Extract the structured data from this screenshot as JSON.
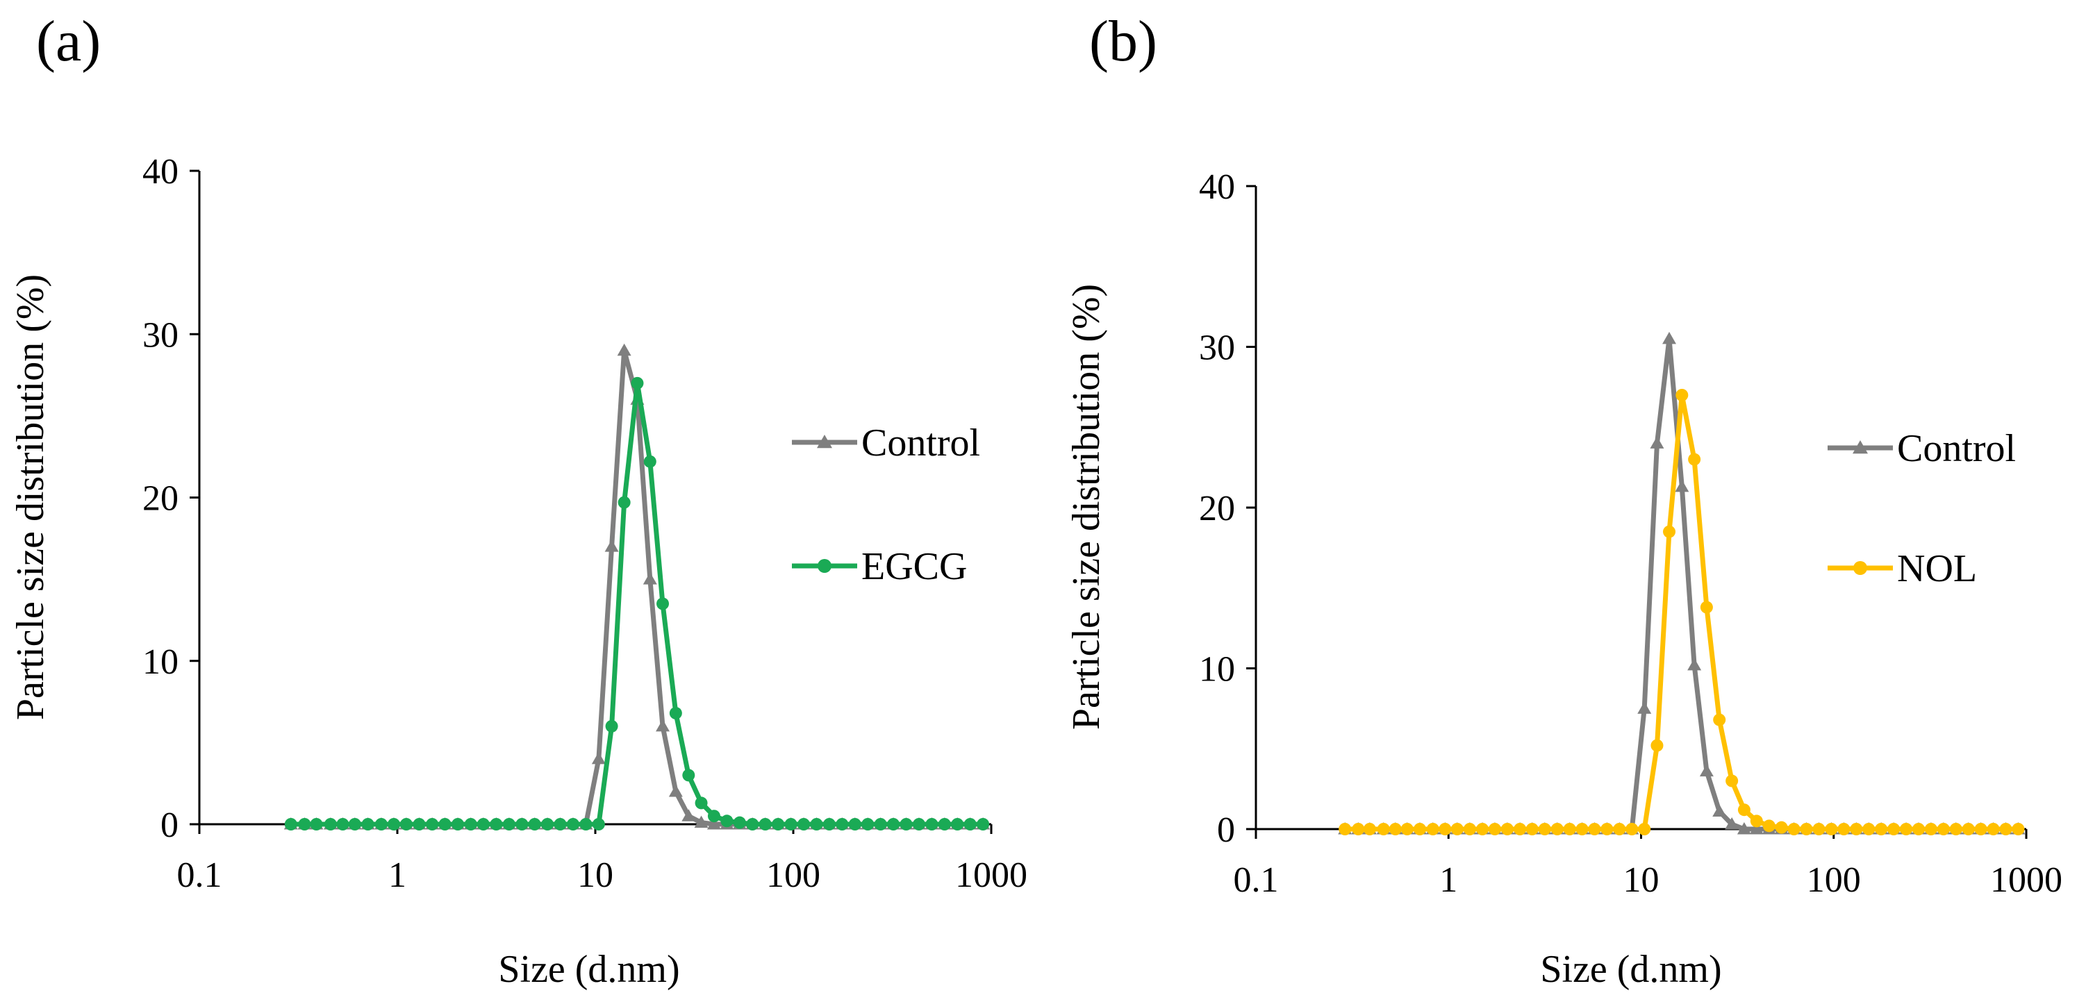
{
  "chart_data": [
    {
      "type": "line",
      "panel_label": "(a)",
      "title": "",
      "xlabel": "Size (d.nm)",
      "ylabel": "Particle size distribution (%)",
      "xscale": "log",
      "xlim": [
        0.1,
        1000
      ],
      "ylim": [
        0,
        40
      ],
      "xticks": [
        0.1,
        1,
        10,
        100,
        1000
      ],
      "xtick_labels": [
        "0.1",
        "1",
        "10",
        "100",
        "1000"
      ],
      "yticks": [
        0,
        10,
        20,
        30,
        40
      ],
      "ytick_labels": [
        "0",
        "10",
        "20",
        "30",
        "40"
      ],
      "grid": false,
      "legend_position": "right",
      "series": [
        {
          "name": "Control",
          "color": "#7f7f7f",
          "marker": "triangle",
          "x": [
            0.29,
            0.34,
            0.39,
            0.46,
            0.53,
            0.61,
            0.71,
            0.83,
            0.96,
            1.11,
            1.29,
            1.5,
            1.74,
            2.02,
            2.35,
            2.72,
            3.16,
            3.67,
            4.26,
            4.94,
            5.73,
            6.65,
            7.72,
            8.96,
            10.4,
            12.1,
            14.0,
            16.3,
            18.9,
            21.9,
            25.5,
            29.6,
            34.3,
            39.8,
            46.2,
            53.6,
            62.2,
            72.2,
            83.8,
            97.3,
            112.9,
            131.1,
            152.1,
            176.5,
            204.9,
            237.8,
            276.0,
            320.3,
            371.8,
            431.5,
            500.8,
            581.2,
            674.5,
            782.8,
            908.5
          ],
          "values": [
            0,
            0,
            0,
            0,
            0,
            0,
            0,
            0,
            0,
            0,
            0,
            0,
            0,
            0,
            0,
            0,
            0,
            0,
            0,
            0,
            0,
            0,
            0,
            0,
            4.0,
            17.0,
            29.0,
            26.0,
            15.0,
            6.0,
            2.0,
            0.5,
            0.1,
            0,
            0,
            0,
            0,
            0,
            0,
            0,
            0,
            0,
            0,
            0,
            0,
            0,
            0,
            0,
            0,
            0,
            0,
            0,
            0,
            0,
            0
          ]
        },
        {
          "name": "EGCG",
          "color": "#1aaa55",
          "marker": "circle",
          "x": [
            0.29,
            0.34,
            0.39,
            0.46,
            0.53,
            0.61,
            0.71,
            0.83,
            0.96,
            1.11,
            1.29,
            1.5,
            1.74,
            2.02,
            2.35,
            2.72,
            3.16,
            3.67,
            4.26,
            4.94,
            5.73,
            6.65,
            7.72,
            8.96,
            10.4,
            12.1,
            14.0,
            16.3,
            18.9,
            21.9,
            25.5,
            29.6,
            34.3,
            39.8,
            46.2,
            53.6,
            62.2,
            72.2,
            83.8,
            97.3,
            112.9,
            131.1,
            152.1,
            176.5,
            204.9,
            237.8,
            276.0,
            320.3,
            371.8,
            431.5,
            500.8,
            581.2,
            674.5,
            782.8,
            908.5
          ],
          "values": [
            0,
            0,
            0,
            0,
            0,
            0,
            0,
            0,
            0,
            0,
            0,
            0,
            0,
            0,
            0,
            0,
            0,
            0,
            0,
            0,
            0,
            0,
            0,
            0,
            0,
            6.0,
            19.7,
            27.0,
            22.2,
            13.5,
            6.8,
            3.0,
            1.3,
            0.5,
            0.2,
            0.1,
            0,
            0,
            0,
            0,
            0,
            0,
            0,
            0,
            0,
            0,
            0,
            0,
            0,
            0,
            0,
            0,
            0,
            0,
            0
          ]
        }
      ]
    },
    {
      "type": "line",
      "panel_label": "(b)",
      "title": "",
      "xlabel": "Size (d.nm)",
      "ylabel": "Particle size distribution (%)",
      "xscale": "log",
      "xlim": [
        0.1,
        1000
      ],
      "ylim": [
        0,
        40
      ],
      "xticks": [
        0.1,
        1,
        10,
        100,
        1000
      ],
      "xtick_labels": [
        "0.1",
        "1",
        "10",
        "100",
        "1000"
      ],
      "yticks": [
        0,
        10,
        20,
        30,
        40
      ],
      "ytick_labels": [
        "0",
        "10",
        "20",
        "30",
        "40"
      ],
      "grid": false,
      "legend_position": "right",
      "series": [
        {
          "name": "Control",
          "color": "#7f7f7f",
          "marker": "triangle",
          "x": [
            0.29,
            0.34,
            0.39,
            0.46,
            0.53,
            0.61,
            0.71,
            0.83,
            0.96,
            1.11,
            1.29,
            1.5,
            1.74,
            2.02,
            2.35,
            2.72,
            3.16,
            3.67,
            4.26,
            4.94,
            5.73,
            6.65,
            7.72,
            8.96,
            10.4,
            12.1,
            14.0,
            16.3,
            18.9,
            21.9,
            25.5,
            29.6,
            34.3,
            39.8,
            46.2,
            53.6,
            62.2,
            72.2,
            83.8,
            97.3,
            112.9,
            131.1,
            152.1,
            176.5,
            204.9,
            237.8,
            276.0,
            320.3,
            371.8,
            431.5,
            500.8,
            581.2,
            674.5,
            782.8,
            908.5
          ],
          "values": [
            0,
            0,
            0,
            0,
            0,
            0,
            0,
            0,
            0,
            0,
            0,
            0,
            0,
            0,
            0,
            0,
            0,
            0,
            0,
            0,
            0,
            0,
            0,
            0,
            7.5,
            24.0,
            30.5,
            21.3,
            10.2,
            3.6,
            1.1,
            0.3,
            0,
            0,
            0,
            0,
            0,
            0,
            0,
            0,
            0,
            0,
            0,
            0,
            0,
            0,
            0,
            0,
            0,
            0,
            0,
            0,
            0,
            0,
            0
          ]
        },
        {
          "name": "NOL",
          "color": "#ffc000",
          "marker": "circle",
          "x": [
            0.29,
            0.34,
            0.39,
            0.46,
            0.53,
            0.61,
            0.71,
            0.83,
            0.96,
            1.11,
            1.29,
            1.5,
            1.74,
            2.02,
            2.35,
            2.72,
            3.16,
            3.67,
            4.26,
            4.94,
            5.73,
            6.65,
            7.72,
            8.96,
            10.4,
            12.1,
            14.0,
            16.3,
            18.9,
            21.9,
            25.5,
            29.6,
            34.3,
            39.8,
            46.2,
            53.6,
            62.2,
            72.2,
            83.8,
            97.3,
            112.9,
            131.1,
            152.1,
            176.5,
            204.9,
            237.8,
            276.0,
            320.3,
            371.8,
            431.5,
            500.8,
            581.2,
            674.5,
            782.8,
            908.5
          ],
          "values": [
            0,
            0,
            0,
            0,
            0,
            0,
            0,
            0,
            0,
            0,
            0,
            0,
            0,
            0,
            0,
            0,
            0,
            0,
            0,
            0,
            0,
            0,
            0,
            0,
            0,
            5.2,
            18.5,
            27.0,
            23.0,
            13.8,
            6.8,
            3.0,
            1.2,
            0.5,
            0.2,
            0.1,
            0,
            0,
            0,
            0,
            0,
            0,
            0,
            0,
            0,
            0,
            0,
            0,
            0,
            0,
            0,
            0,
            0,
            0,
            0
          ]
        }
      ]
    }
  ]
}
